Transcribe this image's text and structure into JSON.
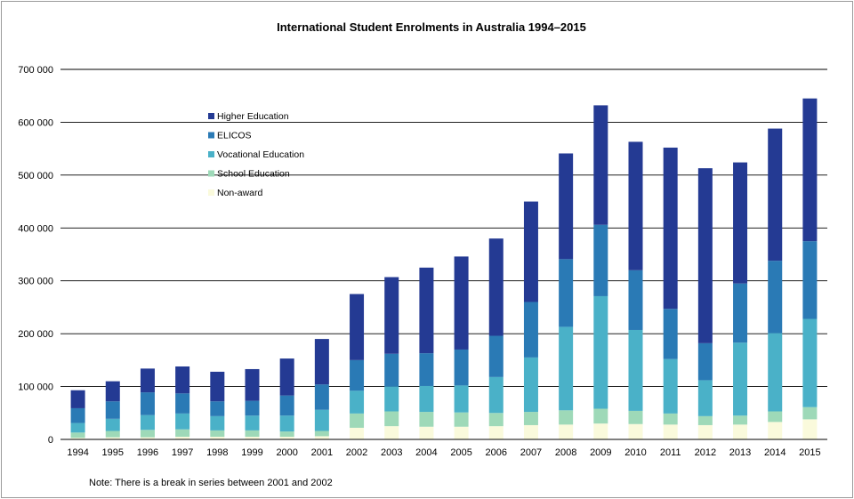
{
  "chart_data": {
    "type": "bar",
    "stacked": true,
    "title": "International Student Enrolments in Australia 1994–2015",
    "note": "Note: There is a break in series between 2001 and 2002",
    "xlabel": "",
    "ylabel": "",
    "ylim": [
      0,
      700000
    ],
    "yticks": [
      0,
      100000,
      200000,
      300000,
      400000,
      500000,
      600000,
      700000
    ],
    "ytick_labels": [
      "0",
      "100 000",
      "200 000",
      "300 000",
      "400 000",
      "500 000",
      "600 000",
      "700 000"
    ],
    "grid": true,
    "legend_position": "top-left",
    "categories": [
      "1994",
      "1995",
      "1996",
      "1997",
      "1998",
      "1999",
      "2000",
      "2001",
      "2002",
      "2003",
      "2004",
      "2005",
      "2006",
      "2007",
      "2008",
      "2009",
      "2010",
      "2011",
      "2012",
      "2013",
      "2014",
      "2015"
    ],
    "series": [
      {
        "name": "Non-award",
        "color": "#fafadc",
        "values": [
          3000,
          4000,
          4000,
          5000,
          5000,
          5000,
          5000,
          6000,
          22000,
          25000,
          24000,
          24000,
          25000,
          27000,
          28000,
          30000,
          29000,
          28000,
          27000,
          28000,
          33000,
          38000
        ]
      },
      {
        "name": "School Education",
        "color": "#9ed9b8",
        "values": [
          10000,
          12000,
          14000,
          14000,
          12000,
          12000,
          10000,
          10000,
          27000,
          28000,
          28000,
          27000,
          25000,
          25000,
          27000,
          28000,
          25000,
          21000,
          17000,
          17000,
          20000,
          23000
        ]
      },
      {
        "name": "Vocational Education",
        "color": "#4ab1c8",
        "values": [
          18000,
          23000,
          28000,
          30000,
          27000,
          28000,
          30000,
          40000,
          43000,
          47000,
          49000,
          51000,
          68000,
          103000,
          158000,
          213000,
          153000,
          103000,
          68000,
          138000,
          148000,
          167000
        ]
      },
      {
        "name": "ELICOS",
        "color": "#2a7ab5",
        "values": [
          28000,
          33000,
          43000,
          38000,
          28000,
          28000,
          38000,
          48000,
          58000,
          62000,
          62000,
          68000,
          78000,
          105000,
          128000,
          135000,
          113000,
          95000,
          70000,
          112000,
          137000,
          147000
        ]
      },
      {
        "name": "Higher Education",
        "color": "#243a93",
        "values": [
          34000,
          38000,
          45000,
          51000,
          56000,
          60000,
          70000,
          86000,
          125000,
          145000,
          162000,
          176000,
          184000,
          190000,
          200000,
          226000,
          243000,
          305000,
          331000,
          229000,
          250000,
          270000
        ]
      }
    ]
  }
}
